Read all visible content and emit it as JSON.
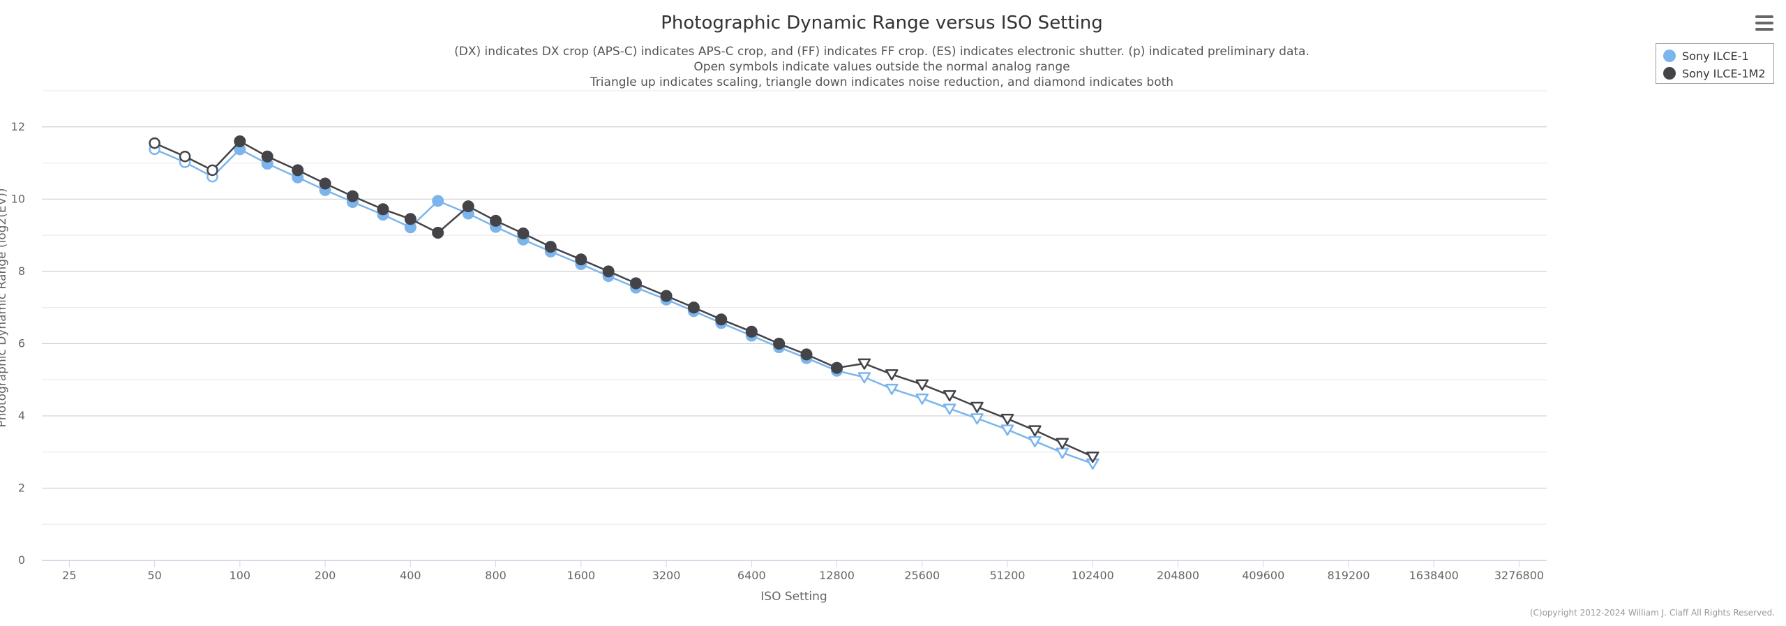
{
  "chart_data": {
    "type": "line",
    "title": "Photographic Dynamic Range versus ISO Setting",
    "subtitle_lines": [
      "(DX) indicates DX crop (APS-C) indicates APS-C crop, and (FF) indicates FF crop. (ES) indicates electronic shutter. (p) indicated preliminary data.",
      "Open symbols indicate values outside the normal analog range",
      "Triangle up indicates scaling, triangle down indicates noise reduction, and diamond indicates both"
    ],
    "xlabel": "ISO Setting",
    "ylabel": "Photographic Dynamic Range (log2(EV))",
    "x_scale": "log2",
    "x_ticks": [
      25,
      50,
      100,
      200,
      400,
      800,
      1600,
      3200,
      6400,
      12800,
      25600,
      51200,
      102400,
      204800,
      409600,
      819200,
      1638400,
      3276800
    ],
    "x_range": [
      20,
      4100000
    ],
    "y_ticks": [
      0,
      2,
      4,
      6,
      8,
      10,
      12
    ],
    "ylim": [
      0,
      13
    ],
    "grid": "horizontal",
    "legend_position": "top-right",
    "series": [
      {
        "name": "Sony ILCE-1",
        "color": "#7cb5ec",
        "points": [
          {
            "x": 50,
            "y": 11.38,
            "marker": "circle-open"
          },
          {
            "x": 64,
            "y": 11.02,
            "marker": "circle-open"
          },
          {
            "x": 80,
            "y": 10.62,
            "marker": "circle-open"
          },
          {
            "x": 100,
            "y": 11.38,
            "marker": "circle"
          },
          {
            "x": 125,
            "y": 10.98,
            "marker": "circle"
          },
          {
            "x": 160,
            "y": 10.6,
            "marker": "circle"
          },
          {
            "x": 200,
            "y": 10.25,
            "marker": "circle"
          },
          {
            "x": 250,
            "y": 9.92,
            "marker": "circle"
          },
          {
            "x": 320,
            "y": 9.57,
            "marker": "circle"
          },
          {
            "x": 400,
            "y": 9.22,
            "marker": "circle"
          },
          {
            "x": 500,
            "y": 9.95,
            "marker": "circle"
          },
          {
            "x": 640,
            "y": 9.6,
            "marker": "circle"
          },
          {
            "x": 800,
            "y": 9.23,
            "marker": "circle"
          },
          {
            "x": 1000,
            "y": 8.88,
            "marker": "circle"
          },
          {
            "x": 1250,
            "y": 8.55,
            "marker": "circle"
          },
          {
            "x": 1600,
            "y": 8.2,
            "marker": "circle"
          },
          {
            "x": 2000,
            "y": 7.87,
            "marker": "circle"
          },
          {
            "x": 2500,
            "y": 7.55,
            "marker": "circle"
          },
          {
            "x": 3200,
            "y": 7.22,
            "marker": "circle"
          },
          {
            "x": 4000,
            "y": 6.9,
            "marker": "circle"
          },
          {
            "x": 5000,
            "y": 6.57,
            "marker": "circle"
          },
          {
            "x": 6400,
            "y": 6.22,
            "marker": "circle"
          },
          {
            "x": 8000,
            "y": 5.9,
            "marker": "circle"
          },
          {
            "x": 10000,
            "y": 5.6,
            "marker": "circle"
          },
          {
            "x": 12800,
            "y": 5.25,
            "marker": "circle"
          },
          {
            "x": 16000,
            "y": 5.07,
            "marker": "triangle-down-open"
          },
          {
            "x": 20000,
            "y": 4.75,
            "marker": "triangle-down-open"
          },
          {
            "x": 25600,
            "y": 4.48,
            "marker": "triangle-down-open"
          },
          {
            "x": 32000,
            "y": 4.2,
            "marker": "triangle-down-open"
          },
          {
            "x": 40000,
            "y": 3.93,
            "marker": "triangle-down-open"
          },
          {
            "x": 51200,
            "y": 3.62,
            "marker": "triangle-down-open"
          },
          {
            "x": 64000,
            "y": 3.3,
            "marker": "triangle-down-open"
          },
          {
            "x": 80000,
            "y": 2.98,
            "marker": "triangle-down-open"
          },
          {
            "x": 102400,
            "y": 2.68,
            "marker": "triangle-down-open"
          }
        ]
      },
      {
        "name": "Sony ILCE-1M2",
        "color": "#434348",
        "points": [
          {
            "x": 50,
            "y": 11.55,
            "marker": "circle-open"
          },
          {
            "x": 64,
            "y": 11.18,
            "marker": "circle-open"
          },
          {
            "x": 80,
            "y": 10.8,
            "marker": "circle-open"
          },
          {
            "x": 100,
            "y": 11.6,
            "marker": "circle"
          },
          {
            "x": 125,
            "y": 11.18,
            "marker": "circle"
          },
          {
            "x": 160,
            "y": 10.8,
            "marker": "circle"
          },
          {
            "x": 200,
            "y": 10.43,
            "marker": "circle"
          },
          {
            "x": 250,
            "y": 10.08,
            "marker": "circle"
          },
          {
            "x": 320,
            "y": 9.72,
            "marker": "circle"
          },
          {
            "x": 400,
            "y": 9.45,
            "marker": "circle"
          },
          {
            "x": 500,
            "y": 9.07,
            "marker": "circle"
          },
          {
            "x": 640,
            "y": 9.8,
            "marker": "circle"
          },
          {
            "x": 800,
            "y": 9.4,
            "marker": "circle"
          },
          {
            "x": 1000,
            "y": 9.05,
            "marker": "circle"
          },
          {
            "x": 1250,
            "y": 8.68,
            "marker": "circle"
          },
          {
            "x": 1600,
            "y": 8.33,
            "marker": "circle"
          },
          {
            "x": 2000,
            "y": 8.0,
            "marker": "circle"
          },
          {
            "x": 2500,
            "y": 7.67,
            "marker": "circle"
          },
          {
            "x": 3200,
            "y": 7.32,
            "marker": "circle"
          },
          {
            "x": 4000,
            "y": 7.0,
            "marker": "circle"
          },
          {
            "x": 5000,
            "y": 6.67,
            "marker": "circle"
          },
          {
            "x": 6400,
            "y": 6.33,
            "marker": "circle"
          },
          {
            "x": 8000,
            "y": 6.0,
            "marker": "circle"
          },
          {
            "x": 10000,
            "y": 5.7,
            "marker": "circle"
          },
          {
            "x": 12800,
            "y": 5.33,
            "marker": "circle"
          },
          {
            "x": 16000,
            "y": 5.45,
            "marker": "triangle-down-open"
          },
          {
            "x": 20000,
            "y": 5.15,
            "marker": "triangle-down-open"
          },
          {
            "x": 25600,
            "y": 4.87,
            "marker": "triangle-down-open"
          },
          {
            "x": 32000,
            "y": 4.57,
            "marker": "triangle-down-open"
          },
          {
            "x": 40000,
            "y": 4.25,
            "marker": "triangle-down-open"
          },
          {
            "x": 51200,
            "y": 3.92,
            "marker": "triangle-down-open"
          },
          {
            "x": 64000,
            "y": 3.6,
            "marker": "triangle-down-open"
          },
          {
            "x": 80000,
            "y": 3.25,
            "marker": "triangle-down-open"
          },
          {
            "x": 102400,
            "y": 2.87,
            "marker": "triangle-down-open"
          }
        ]
      }
    ]
  },
  "credits": "(C)opyright 2012-2024 William J. Claff All Rights Reserved.",
  "menu": {
    "icon": "hamburger-menu-icon"
  }
}
